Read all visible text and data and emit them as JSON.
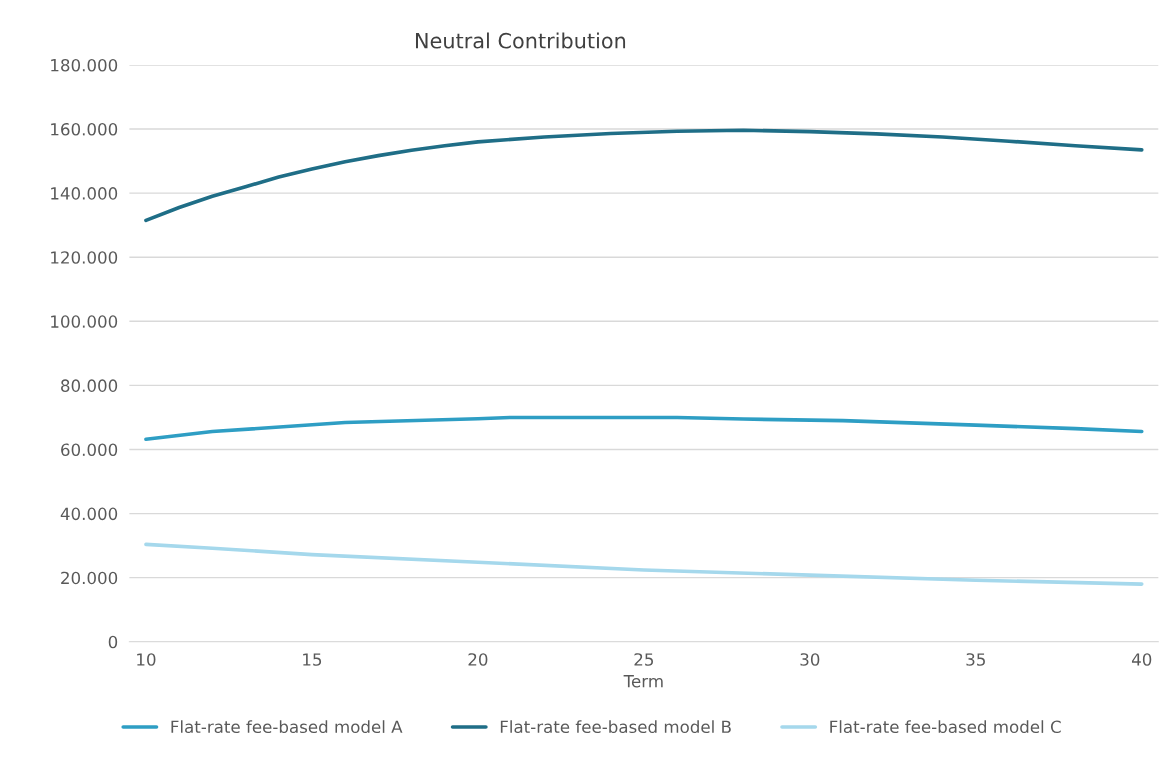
{
  "chart_data": {
    "type": "line",
    "title": "Neutral Contribution",
    "xlabel": "Term",
    "xlim": [
      9.5,
      40.5
    ],
    "xticks": [
      10,
      15,
      20,
      25,
      30,
      35,
      40
    ],
    "ylim": [
      0,
      180000
    ],
    "yticks": [
      0,
      {
        "value": 20000,
        "label": "20.000"
      },
      {
        "value": 40000,
        "label": "40.000"
      },
      {
        "value": 60000,
        "label": "60.000"
      },
      {
        "value": 80000,
        "label": "80.000"
      },
      {
        "value": 100000,
        "label": "100.000"
      },
      {
        "value": 120000,
        "label": "120.000"
      },
      {
        "value": 140000,
        "label": "140.000"
      },
      {
        "value": 160000,
        "label": "160.000"
      },
      {
        "value": 180000,
        "label": "180.000"
      }
    ],
    "grid": "y",
    "legend": "bottom",
    "marker": "none",
    "line_style": "solid",
    "series": [
      {
        "name": "Flat-rate fee-based model A",
        "color": "#2e9ec4",
        "x": [
          10,
          12,
          16,
          20,
          21,
          26,
          28,
          31,
          35,
          38,
          40
        ],
        "values": [
          63200,
          65600,
          68400,
          69600,
          70000,
          70000,
          69500,
          69000,
          67600,
          66500,
          65600
        ]
      },
      {
        "name": "Flat-rate fee-based model B",
        "color": "#1f6e87",
        "x": [
          10,
          11,
          12,
          13,
          14,
          15,
          16,
          17,
          18,
          19,
          20,
          22,
          24,
          26,
          28,
          30,
          32,
          34,
          36,
          38,
          40
        ],
        "values": [
          131500,
          135500,
          139000,
          142000,
          145000,
          147500,
          149800,
          151700,
          153400,
          154800,
          156000,
          157500,
          158600,
          159300,
          159600,
          159200,
          158500,
          157500,
          156200,
          154800,
          153500
        ]
      },
      {
        "name": "Flat-rate fee-based model C",
        "color": "#a5d8ec",
        "x": [
          10,
          12,
          15,
          20,
          25,
          30,
          35,
          40
        ],
        "values": [
          30400,
          29200,
          27200,
          24800,
          22400,
          20800,
          19200,
          18000
        ]
      }
    ]
  }
}
